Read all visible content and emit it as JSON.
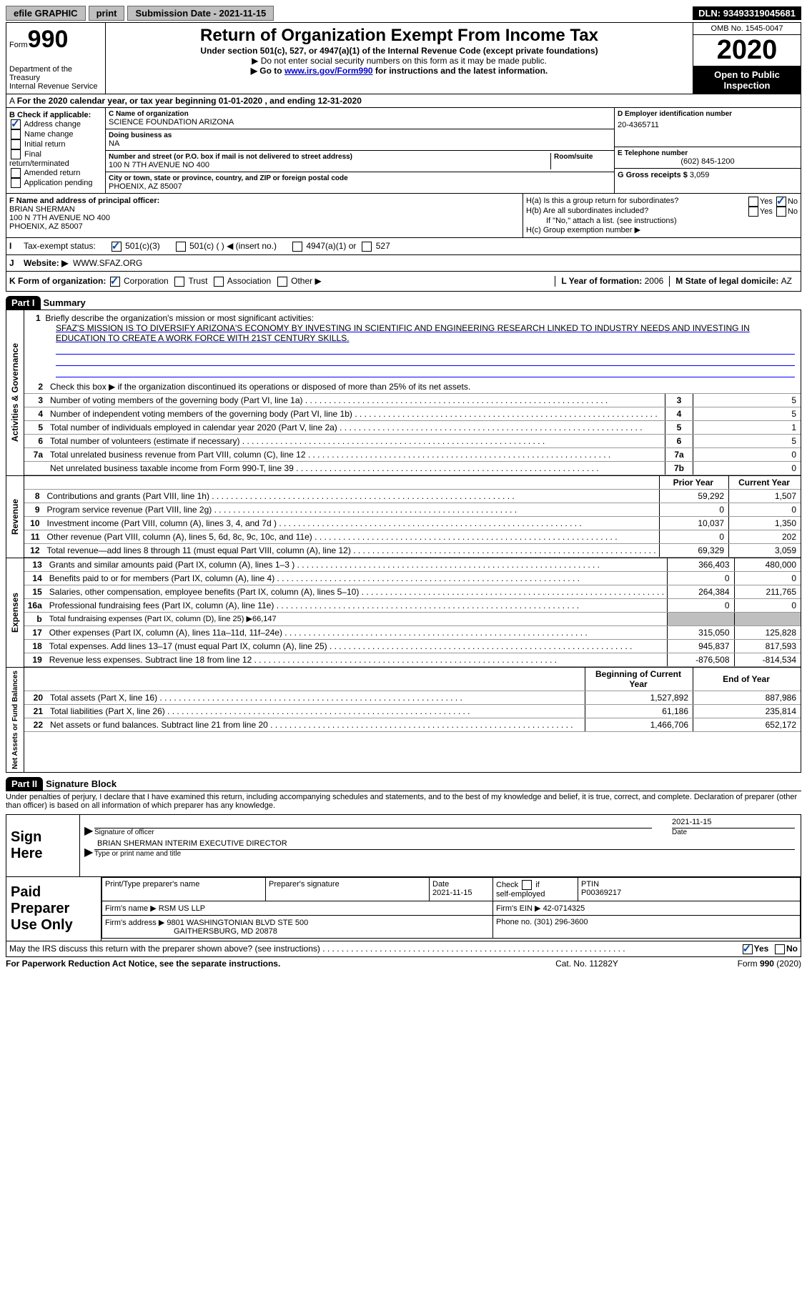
{
  "topbar": {
    "efile": "efile GRAPHIC",
    "print": "print",
    "subdate_label": "Submission Date - ",
    "subdate": "2021-11-15",
    "dln_label": "DLN: ",
    "dln": "93493319045681"
  },
  "header": {
    "form_prefix": "Form",
    "form_num": "990",
    "dept": "Department of the Treasury\nInternal Revenue Service",
    "title": "Return of Organization Exempt From Income Tax",
    "sub": "Under section 501(c), 527, or 4947(a)(1) of the Internal Revenue Code (except private foundations)",
    "note1": "▶ Do not enter social security numbers on this form as it may be made public.",
    "note2_pre": "▶ Go to ",
    "note2_link": "www.irs.gov/Form990",
    "note2_post": " for instructions and the latest information.",
    "omb": "OMB No. 1545-0047",
    "year": "2020",
    "open": "Open to Public Inspection"
  },
  "lineA": "For the 2020 calendar year, or tax year beginning 01-01-2020   , and ending 12-31-2020",
  "boxB": {
    "label": "B Check if applicable:",
    "items": [
      "Address change",
      "Name change",
      "Initial return",
      "Final return/terminated",
      "Amended return",
      "Application pending"
    ],
    "checked": [
      true,
      false,
      false,
      false,
      false,
      false
    ]
  },
  "boxC": {
    "name_label": "C Name of organization",
    "name": "SCIENCE FOUNDATION ARIZONA",
    "dba_label": "Doing business as",
    "dba": "NA",
    "addr_label": "Number and street (or P.O. box if mail is not delivered to street address)",
    "room_label": "Room/suite",
    "addr": "100 N 7TH AVENUE NO 400",
    "city_label": "City or town, state or province, country, and ZIP or foreign postal code",
    "city": "PHOENIX, AZ  85007"
  },
  "boxD": {
    "label": "D Employer identification number",
    "val": "20-4365711",
    "tel_label": "E Telephone number",
    "tel": "(602) 845-1200",
    "gross_label": "G Gross receipts $ ",
    "gross": "3,059"
  },
  "boxF": {
    "label": "F  Name and address of principal officer:",
    "name": "BRIAN SHERMAN",
    "addr1": "100 N 7TH AVENUE NO 400",
    "addr2": "PHOENIX, AZ  85007"
  },
  "boxH": {
    "a": "H(a)  Is this a group return for subordinates?",
    "b": "H(b)  Are all subordinates included?",
    "b_note": "If \"No,\" attach a list. (see instructions)",
    "c": "H(c)  Group exemption number ▶",
    "yes": "Yes",
    "no": "No"
  },
  "lineI": {
    "label": "Tax-exempt status:",
    "opts": [
      "501(c)(3)",
      "501(c) (  ) ◀ (insert no.)",
      "4947(a)(1) or",
      "527"
    ]
  },
  "lineJ": {
    "label": "Website: ▶",
    "val": "WWW.SFAZ.ORG"
  },
  "lineK": {
    "label": "K Form of organization:",
    "opts": [
      "Corporation",
      "Trust",
      "Association",
      "Other ▶"
    ],
    "L_label": "L Year of formation: ",
    "L_val": "2006",
    "M_label": "M State of legal domicile: ",
    "M_val": "AZ"
  },
  "part1": {
    "tag": "Part I",
    "title": "Summary"
  },
  "mission": {
    "intro": "1  Briefly describe the organization's mission or most significant activities:",
    "text": "SFAZ'S MISSION IS TO DIVERSIFY ARIZONA'S ECONOMY BY INVESTING IN SCIENTIFIC AND ENGINEERING RESEARCH LINKED TO INDUSTRY NEEDS AND INVESTING IN EDUCATION TO CREATE A WORK FORCE WITH 21ST CENTURY SKILLS."
  },
  "gov": {
    "vert": "Activities & Governance",
    "line2": "Check this box ▶      if the organization discontinued its operations or disposed of more than 25% of its net assets.",
    "rows": [
      {
        "n": "3",
        "d": "Number of voting members of the governing body (Part VI, line 1a)",
        "b": "3",
        "v": "5"
      },
      {
        "n": "4",
        "d": "Number of independent voting members of the governing body (Part VI, line 1b)",
        "b": "4",
        "v": "5"
      },
      {
        "n": "5",
        "d": "Total number of individuals employed in calendar year 2020 (Part V, line 2a)",
        "b": "5",
        "v": "1"
      },
      {
        "n": "6",
        "d": "Total number of volunteers (estimate if necessary)",
        "b": "6",
        "v": "5"
      },
      {
        "n": "7a",
        "d": "Total unrelated business revenue from Part VIII, column (C), line 12",
        "b": "7a",
        "v": "0"
      },
      {
        "n": "",
        "d": "Net unrelated business taxable income from Form 990-T, line 39",
        "b": "7b",
        "v": "0"
      }
    ]
  },
  "rev": {
    "vert": "Revenue",
    "hdr_prior": "Prior Year",
    "hdr_curr": "Current Year",
    "rows": [
      {
        "n": "8",
        "d": "Contributions and grants (Part VIII, line 1h)",
        "p": "59,292",
        "c": "1,507"
      },
      {
        "n": "9",
        "d": "Program service revenue (Part VIII, line 2g)",
        "p": "0",
        "c": "0"
      },
      {
        "n": "10",
        "d": "Investment income (Part VIII, column (A), lines 3, 4, and 7d )",
        "p": "10,037",
        "c": "1,350"
      },
      {
        "n": "11",
        "d": "Other revenue (Part VIII, column (A), lines 5, 6d, 8c, 9c, 10c, and 11e)",
        "p": "0",
        "c": "202"
      },
      {
        "n": "12",
        "d": "Total revenue—add lines 8 through 11 (must equal Part VIII, column (A), line 12)",
        "p": "69,329",
        "c": "3,059"
      }
    ]
  },
  "exp": {
    "vert": "Expenses",
    "rows": [
      {
        "n": "13",
        "d": "Grants and similar amounts paid (Part IX, column (A), lines 1–3 )",
        "p": "366,403",
        "c": "480,000"
      },
      {
        "n": "14",
        "d": "Benefits paid to or for members (Part IX, column (A), line 4)",
        "p": "0",
        "c": "0"
      },
      {
        "n": "15",
        "d": "Salaries, other compensation, employee benefits (Part IX, column (A), lines 5–10)",
        "p": "264,384",
        "c": "211,765"
      },
      {
        "n": "16a",
        "d": "Professional fundraising fees (Part IX, column (A), line 11e)",
        "p": "0",
        "c": "0"
      },
      {
        "n": "b",
        "d": "Total fundraising expenses (Part IX, column (D), line 25) ▶66,147",
        "grey": true
      },
      {
        "n": "17",
        "d": "Other expenses (Part IX, column (A), lines 11a–11d, 11f–24e)",
        "p": "315,050",
        "c": "125,828"
      },
      {
        "n": "18",
        "d": "Total expenses. Add lines 13–17 (must equal Part IX, column (A), line 25)",
        "p": "945,837",
        "c": "817,593"
      },
      {
        "n": "19",
        "d": "Revenue less expenses. Subtract line 18 from line 12",
        "p": "-876,508",
        "c": "-814,534"
      }
    ]
  },
  "net": {
    "vert": "Net Assets or Fund Balances",
    "hdr_begin": "Beginning of Current Year",
    "hdr_end": "End of Year",
    "rows": [
      {
        "n": "20",
        "d": "Total assets (Part X, line 16)",
        "p": "1,527,892",
        "c": "887,986"
      },
      {
        "n": "21",
        "d": "Total liabilities (Part X, line 26)",
        "p": "61,186",
        "c": "235,814"
      },
      {
        "n": "22",
        "d": "Net assets or fund balances. Subtract line 21 from line 20",
        "p": "1,466,706",
        "c": "652,172"
      }
    ]
  },
  "part2": {
    "tag": "Part II",
    "title": "Signature Block"
  },
  "penalty": "Under penalties of perjury, I declare that I have examined this return, including accompanying schedules and statements, and to the best of my knowledge and belief, it is true, correct, and complete. Declaration of preparer (other than officer) is based on all information of which preparer has any knowledge.",
  "sign": {
    "here": "Sign Here",
    "date": "2021-11-15",
    "sig_cap": "Signature of officer",
    "date_cap": "Date",
    "name": "BRIAN SHERMAN  INTERIM EXECUTIVE DIRECTOR",
    "name_cap": "Type or print name and title"
  },
  "prep": {
    "label": "Paid Preparer Use Only",
    "h1": "Print/Type preparer's name",
    "h2": "Preparer's signature",
    "h3": "Date",
    "h3v": "2021-11-15",
    "h4": "Check      if self-employed",
    "h5": "PTIN",
    "h5v": "P00369217",
    "firm_label": "Firm's name    ▶ ",
    "firm": "RSM US LLP",
    "ein_label": "Firm's EIN ▶ ",
    "ein": "42-0714325",
    "addr_label": "Firm's address ▶ ",
    "addr1": "9801 WASHINGTONIAN BLVD STE 500",
    "addr2": "GAITHERSBURG, MD  20878",
    "phone_label": "Phone no. ",
    "phone": "(301) 296-3600"
  },
  "discuss": "May the IRS discuss this return with the preparer shown above? (see instructions)",
  "footer": {
    "left": "For Paperwork Reduction Act Notice, see the separate instructions.",
    "mid": "Cat. No. 11282Y",
    "right": "Form 990 (2020)"
  }
}
